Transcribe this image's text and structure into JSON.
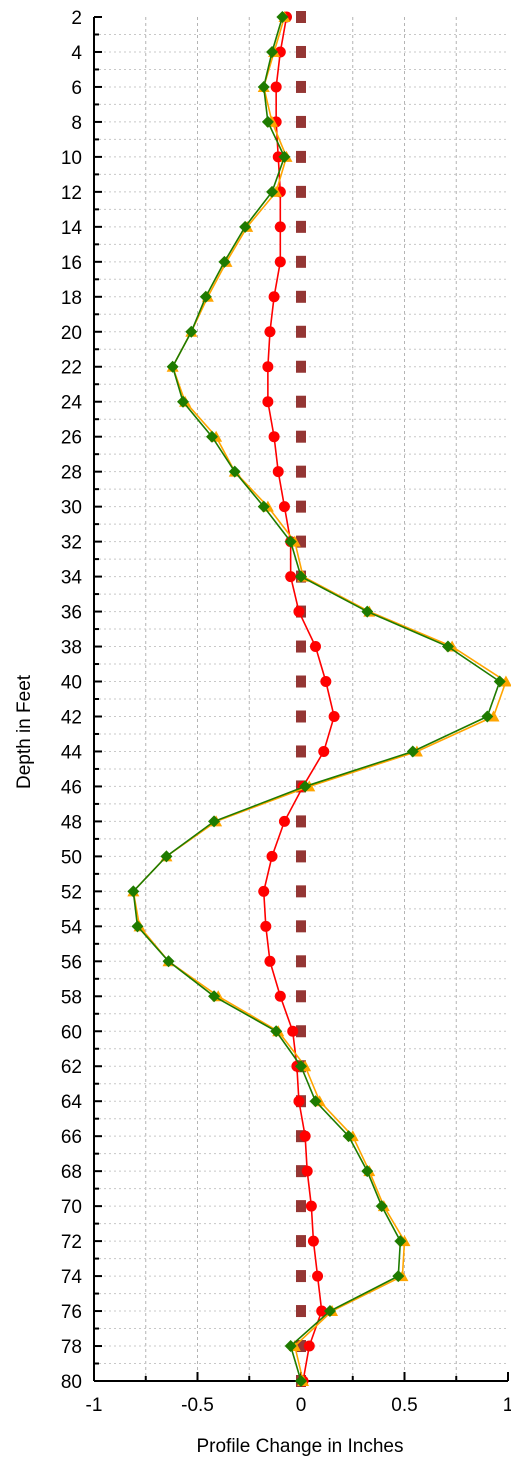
{
  "chart_data": {
    "type": "line",
    "orientation": "depth-profile",
    "xlabel": "Profile Change in Inches",
    "ylabel": "Depth in Feet",
    "xlim": [
      -1,
      1
    ],
    "ylim": [
      2,
      80
    ],
    "y_inverted": true,
    "x_ticks": [
      "-1",
      "-0.5",
      "0",
      "0.5",
      "1"
    ],
    "y_ticks": [
      "2",
      "4",
      "6",
      "8",
      "10",
      "12",
      "14",
      "16",
      "18",
      "20",
      "22",
      "24",
      "26",
      "28",
      "30",
      "32",
      "34",
      "36",
      "38",
      "40",
      "42",
      "44",
      "46",
      "48",
      "50",
      "52",
      "54",
      "56",
      "58",
      "60",
      "62",
      "64",
      "66",
      "68",
      "70",
      "72",
      "74",
      "76",
      "78",
      "80"
    ],
    "grid": true,
    "legend": "none",
    "depths": [
      2,
      4,
      6,
      8,
      10,
      12,
      14,
      16,
      18,
      20,
      22,
      24,
      26,
      28,
      30,
      32,
      34,
      36,
      38,
      40,
      42,
      44,
      46,
      48,
      50,
      52,
      54,
      56,
      58,
      60,
      62,
      64,
      66,
      68,
      70,
      72,
      74,
      76,
      78,
      80
    ],
    "series": [
      {
        "marker": "square",
        "color": "#943634",
        "line": false,
        "values": [
          0,
          0,
          0,
          0,
          0,
          0,
          0,
          0,
          0,
          0,
          0,
          0,
          0,
          0,
          0,
          0,
          0,
          0,
          0,
          0,
          0,
          0,
          0,
          0,
          0,
          0,
          0,
          0,
          0,
          0,
          0,
          0,
          0,
          0,
          0,
          0,
          0,
          0,
          0,
          0
        ]
      },
      {
        "marker": "circle",
        "color": "#ff0000",
        "line": true,
        "values": [
          -0.07,
          -0.1,
          -0.12,
          -0.12,
          -0.11,
          -0.1,
          -0.1,
          -0.1,
          -0.13,
          -0.15,
          -0.16,
          -0.16,
          -0.13,
          -0.11,
          -0.08,
          -0.05,
          -0.05,
          -0.01,
          0.07,
          0.12,
          0.16,
          0.11,
          0.01,
          -0.08,
          -0.14,
          -0.18,
          -0.17,
          -0.15,
          -0.1,
          -0.04,
          -0.02,
          -0.01,
          0.02,
          0.03,
          0.05,
          0.06,
          0.08,
          0.1,
          0.04,
          0.01
        ]
      },
      {
        "marker": "triangle",
        "color": "#ffa500",
        "line": true,
        "values": [
          -0.08,
          -0.13,
          -0.18,
          -0.14,
          -0.07,
          -0.12,
          -0.26,
          -0.36,
          -0.45,
          -0.53,
          -0.62,
          -0.56,
          -0.41,
          -0.32,
          -0.16,
          -0.03,
          0.01,
          0.33,
          0.73,
          0.99,
          0.93,
          0.56,
          0.04,
          -0.41,
          -0.65,
          -0.81,
          -0.78,
          -0.64,
          -0.4,
          -0.11,
          0.02,
          0.09,
          0.25,
          0.33,
          0.4,
          0.5,
          0.49,
          0.15,
          -0.03,
          0.01
        ]
      },
      {
        "marker": "diamond",
        "color": "#1e7b00",
        "line": true,
        "values": [
          -0.09,
          -0.14,
          -0.18,
          -0.16,
          -0.08,
          -0.14,
          -0.27,
          -0.37,
          -0.46,
          -0.53,
          -0.62,
          -0.57,
          -0.43,
          -0.32,
          -0.18,
          -0.05,
          0,
          0.32,
          0.71,
          0.96,
          0.9,
          0.54,
          0.02,
          -0.42,
          -0.65,
          -0.81,
          -0.79,
          -0.64,
          -0.42,
          -0.12,
          0,
          0.07,
          0.23,
          0.32,
          0.39,
          0.48,
          0.47,
          0.14,
          -0.05,
          0
        ]
      }
    ]
  }
}
